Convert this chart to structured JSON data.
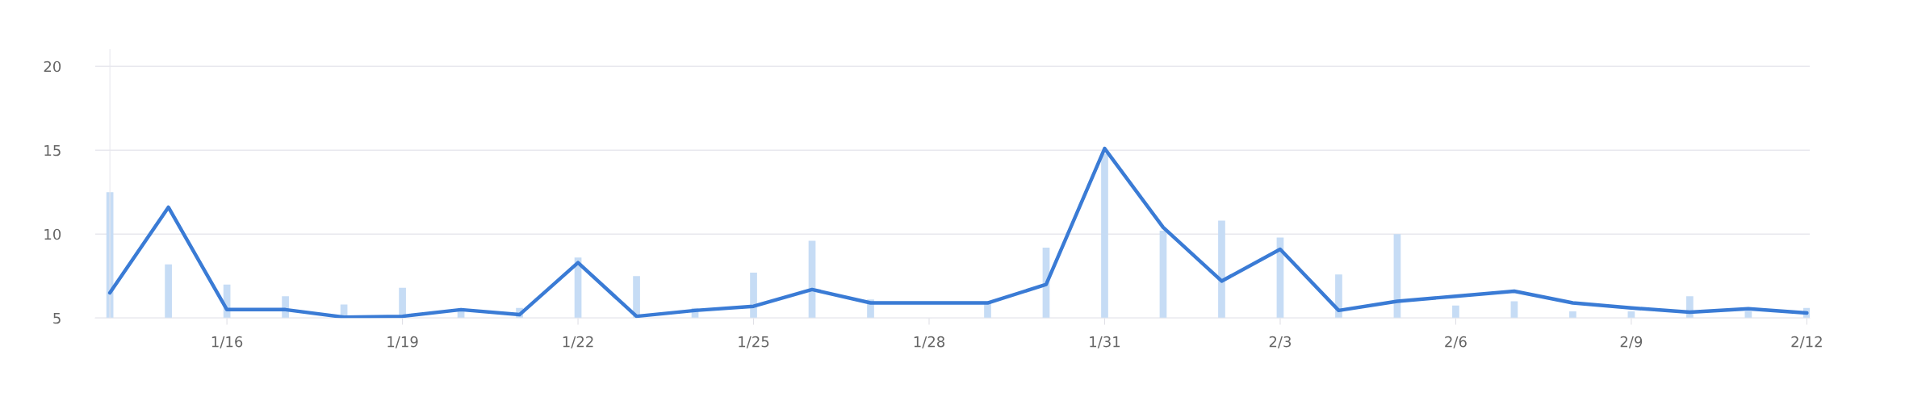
{
  "chart_data": {
    "type": "bar",
    "categories": [
      null,
      null,
      "1/16",
      null,
      null,
      "1/19",
      null,
      null,
      "1/22",
      null,
      null,
      "1/25",
      null,
      null,
      "1/28",
      null,
      null,
      "1/31",
      null,
      null,
      "2/3",
      null,
      null,
      "2/6",
      null,
      null,
      "2/9",
      null,
      null,
      "2/12"
    ],
    "series": [
      {
        "color": "#c6dcf5",
        "values": [
          12.5,
          8.2,
          7.0,
          6.3,
          5.8,
          6.8,
          5.4,
          5.6,
          8.6,
          7.5,
          5.6,
          7.7,
          9.6,
          6.1,
          5.0,
          5.9,
          9.2,
          14.8,
          10.2,
          10.8,
          9.8,
          7.6,
          10.0,
          5.75,
          6.0,
          5.4,
          5.4,
          6.3,
          5.4,
          5.6
        ]
      },
      {
        "type": "line",
        "color": "#3a7bd5",
        "values": [
          6.5,
          11.6,
          5.5,
          5.5,
          5.05,
          5.1,
          5.5,
          5.2,
          8.3,
          5.1,
          5.45,
          5.7,
          6.7,
          5.9,
          5.9,
          5.9,
          7.0,
          15.1,
          10.4,
          7.2,
          9.1,
          5.45,
          6.0,
          6.3,
          6.6,
          5.9,
          5.6,
          5.35,
          5.55,
          5.3
        ]
      }
    ],
    "ylim": [
      5,
      21
    ],
    "yticks": [
      5,
      10,
      15,
      20
    ],
    "grid": "y",
    "marker": "none",
    "line_style": "solid"
  }
}
